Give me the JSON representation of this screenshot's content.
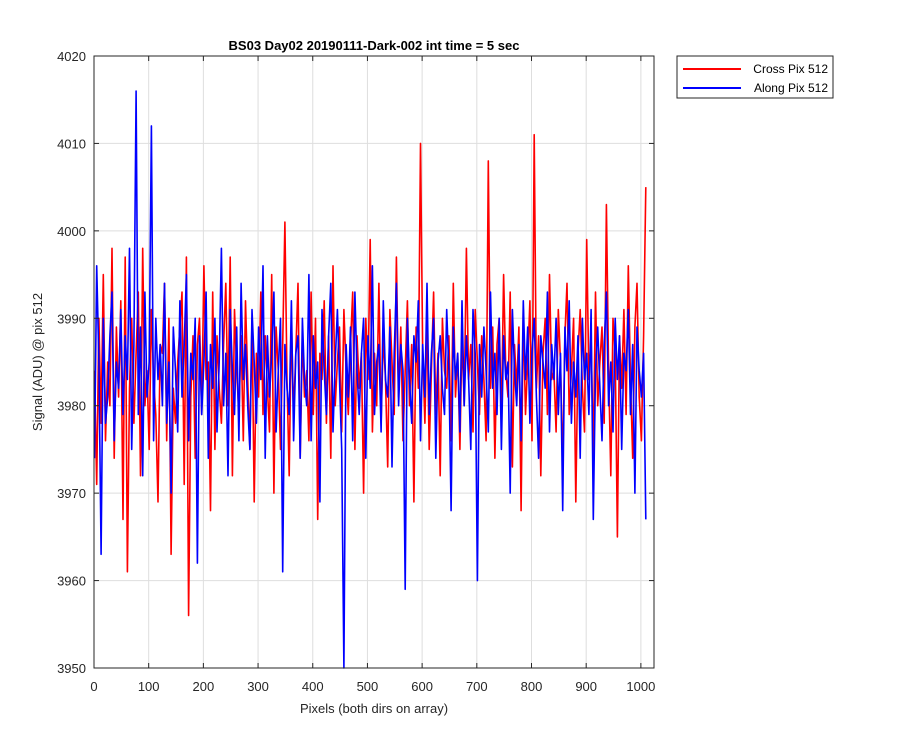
{
  "chart_data": {
    "type": "line",
    "title": "BS03 Day02 20190111-Dark-002 int time = 5 sec",
    "xlabel": "Pixels (both dirs on array)",
    "ylabel": "Signal (ADU) @ pix 512",
    "xlim": [
      0,
      1024
    ],
    "ylim": [
      3950,
      4020
    ],
    "x_ticks": [
      0,
      100,
      200,
      300,
      400,
      500,
      600,
      700,
      800,
      900,
      1000
    ],
    "y_ticks": [
      3950,
      3960,
      3970,
      3980,
      3990,
      4000,
      4010,
      4020
    ],
    "grid": true,
    "legend_position": "outside-top-right",
    "x_start": 1,
    "x_step": 4,
    "series": [
      {
        "name": "Cross Pix 512",
        "color": "#ff0000",
        "values": [
          3984,
          3971,
          3990,
          3978,
          3995,
          3976,
          3985,
          3980,
          3998,
          3974,
          3989,
          3981,
          3992,
          3967,
          3997,
          3961,
          3982,
          3990,
          3978,
          3986,
          3993,
          3972,
          3998,
          3980,
          3984,
          3975,
          3991,
          3983,
          3979,
          3969,
          3987,
          3986,
          3994,
          3976,
          3990,
          3963,
          3982,
          3978,
          3985,
          3989,
          3993,
          3971,
          3997,
          3956,
          3981,
          3988,
          3974,
          3987,
          3990,
          3979,
          3996,
          3983,
          3985,
          3968,
          3993,
          3975,
          3988,
          3982,
          3978,
          3987,
          3994,
          3980,
          3997,
          3972,
          3991,
          3984,
          3979,
          3988,
          3976,
          3992,
          3983,
          3975,
          3990,
          3969,
          3986,
          3981,
          3993,
          3979,
          3988,
          3982,
          3977,
          3995,
          3970,
          3989,
          3984,
          3975,
          3987,
          4001,
          3983,
          3972,
          3990,
          3979,
          3986,
          3994,
          3974,
          3988,
          3981,
          3984,
          3976,
          3993,
          3979,
          3990,
          3967,
          3986,
          3983,
          3992,
          3978,
          3988,
          3974,
          3996,
          3980,
          3985,
          3989,
          3977,
          3991,
          3984,
          3979,
          3987,
          3993,
          3975,
          3988,
          3982,
          3986,
          3970,
          3990,
          3983,
          3999,
          3977,
          3986,
          3980,
          3994,
          3978,
          3988,
          3983,
          3973,
          3991,
          3985,
          3979,
          3997,
          3981,
          3989,
          3976,
          3984,
          3992,
          3980,
          3987,
          3969,
          3989,
          3982,
          4010,
          3986,
          3978,
          3990,
          3975,
          3984,
          3993,
          3979,
          3986,
          3972,
          3990,
          3984,
          3982,
          3988,
          3976,
          3994,
          3981,
          3986,
          3975,
          3988,
          3980,
          3998,
          3983,
          3987,
          3977,
          3991,
          3985,
          3979,
          3988,
          3983,
          3976,
          4008,
          3982,
          3989,
          3974,
          3987,
          3990,
          3978,
          3995,
          3984,
          3981,
          3993,
          3973,
          3987,
          3982,
          3989,
          3968,
          3991,
          3979,
          3985,
          3992,
          3976,
          4011,
          3982,
          3988,
          3972,
          3986,
          3990,
          3979,
          3995,
          3983,
          3984,
          3977,
          3991,
          3985,
          3973,
          3988,
          3994,
          3979,
          3984,
          3990,
          3969,
          3986,
          3991,
          3982,
          3977,
          3999,
          3983,
          3988,
          3974,
          3993,
          3980,
          3985,
          3989,
          3978,
          4003,
          3984,
          3972,
          3990,
          3986,
          3965,
          3988,
          3982,
          3991,
          3979,
          3996,
          3983,
          3974,
          3989,
          3994,
          3981,
          3976,
          3988,
          4005
        ]
      },
      {
        "name": "Along Pix 512",
        "color": "#0000ff",
        "values": [
          3974,
          3996,
          3985,
          3963,
          3990,
          3978,
          3981,
          3988,
          3993,
          3976,
          3985,
          3982,
          3991,
          3979,
          3988,
          3983,
          3998,
          3975,
          3987,
          4016,
          3979,
          3989,
          3972,
          3993,
          3981,
          3985,
          4012,
          3976,
          3990,
          3983,
          3987,
          3980,
          3994,
          3978,
          3985,
          3970,
          3989,
          3984,
          3977,
          3992,
          3981,
          3987,
          3995,
          3976,
          3986,
          3983,
          3990,
          3962,
          3988,
          3979,
          3985,
          3993,
          3974,
          3987,
          3982,
          3990,
          3977,
          3985,
          3998,
          3980,
          3986,
          3972,
          3991,
          3984,
          3979,
          3989,
          3976,
          3994,
          3983,
          3987,
          3980,
          3975,
          3991,
          3985,
          3978,
          3989,
          3983,
          3996,
          3974,
          3988,
          3981,
          3986,
          3993,
          3977,
          3984,
          3990,
          3961,
          3987,
          3982,
          3979,
          3992,
          3976,
          3986,
          3988,
          3974,
          3990,
          3983,
          3980,
          3995,
          3976,
          3988,
          3982,
          3985,
          3969,
          3991,
          3984,
          3979,
          3988,
          3994,
          3977,
          3985,
          3991,
          3983,
          3975,
          3950,
          3987,
          3981,
          3989,
          3976,
          3993,
          3984,
          3979,
          3986,
          3990,
          3974,
          3988,
          3982,
          3996,
          3979,
          3985,
          3987,
          3977,
          3992,
          3983,
          3981,
          3989,
          3973,
          3986,
          3994,
          3980,
          3987,
          3984,
          3959,
          3990,
          3983,
          3978,
          3988,
          3985,
          3992,
          3976,
          3987,
          3981,
          3994,
          3979,
          3986,
          3990,
          3974,
          3985,
          3988,
          3982,
          3979,
          3991,
          3984,
          3968,
          3989,
          3983,
          3986,
          3977,
          3992,
          3980,
          3988,
          3983,
          3975,
          3991,
          3986,
          3960,
          3987,
          3981,
          3989,
          3984,
          3977,
          3993,
          3982,
          3986,
          3979,
          3990,
          3975,
          3988,
          3983,
          3985,
          3970,
          3991,
          3984,
          3980,
          3987,
          3976,
          3992,
          3983,
          3989,
          3978,
          3986,
          3990,
          3981,
          3974,
          3988,
          3985,
          3982,
          3993,
          3977,
          3987,
          3983,
          3990,
          3979,
          3986,
          3968,
          3989,
          3984,
          3992,
          3978,
          3985,
          3981,
          3988,
          3974,
          3990,
          3983,
          3986,
          3979,
          3991,
          3967,
          3984,
          3989,
          3982,
          3976,
          3987,
          3993,
          3980,
          3985,
          3977,
          3990,
          3983,
          3988,
          3975,
          3986,
          3984,
          3991,
          3979,
          3987,
          3970,
          3989,
          3984,
          3981,
          3986,
          3967
        ]
      }
    ]
  }
}
